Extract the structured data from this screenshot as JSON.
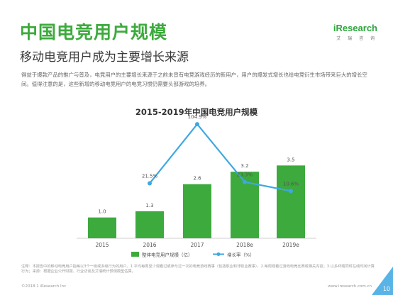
{
  "header": {
    "title": "中国电竞用户规模",
    "subtitle": "移动电竞用户成为主要增长来源",
    "logo_text": "iResearch",
    "logo_sub": "艾 瑞 咨 询"
  },
  "description": "得益于爆款产品的推广与普及，电竞用户的主要增长来源于之前未曾有电竞游戏经历的新用户，用户的爆发式增长也给电竞衍生市场带来巨大的增长空间。值得注意的是，这些新增的移动电竞用户的电竞习惯仍需要头部游戏的培养。",
  "chart_data": {
    "type": "bar",
    "title": "2015-2019年中国电竞用户规模",
    "categories": [
      "2015",
      "2016",
      "2017",
      "2018e",
      "2019e"
    ],
    "series": [
      {
        "name": "整体电竞用户规模（亿）",
        "type": "bar",
        "values": [
          1.0,
          1.3,
          2.6,
          3.2,
          3.5
        ],
        "labels": [
          "1.0",
          "1.3",
          "2.6",
          "3.2",
          "3.5"
        ],
        "color": "#3daa3d"
      },
      {
        "name": "增长率（%）",
        "type": "line",
        "values": [
          null,
          21.5,
          104.9,
          23.3,
          10.6
        ],
        "labels": [
          "",
          "21.5%",
          "104.9%",
          "23.3%",
          "10.6%"
        ],
        "color": "#3ea8e0"
      }
    ],
    "ylim_bar": [
      0,
      6
    ],
    "ylim_line": [
      0,
      120
    ],
    "grid": false,
    "legend": "bottom"
  },
  "notes": "注释：本报告中的移动电竞用户指每以3个一级或多级行为的用户。1.平均每周至少观看过或参与过一次的电竞游戏赛事（包括职业和非职业赛事），2.每周观看过游戏电竞比赛或相关内容；3.以多终端同时在线时间计算行为；来源：根据企业公开财报、行业访谈及艾瑞统计预测模型估算。",
  "footer": {
    "copyright": "©2018.1 iResearch Inc",
    "url": "www.iresearch.com.cn",
    "page": "10"
  },
  "colors": {
    "title_green": "#3daa3d",
    "bar_green": "#3daa3d",
    "line_blue": "#3ea8e0",
    "corner_blue": "#58b4e6"
  }
}
